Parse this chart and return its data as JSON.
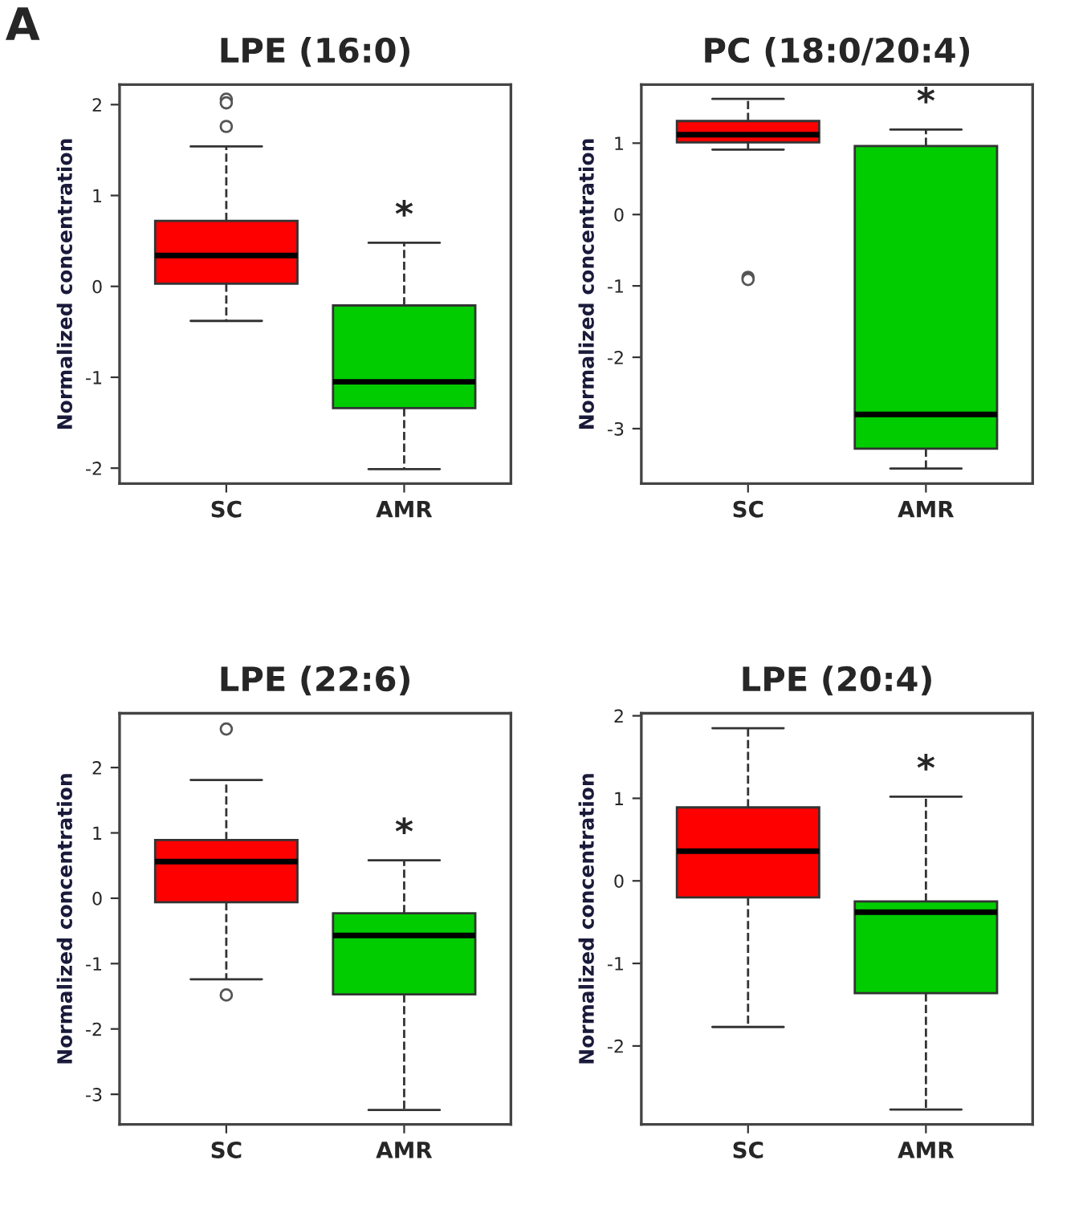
{
  "chart_data": [
    {
      "type": "box",
      "title": "LPE (16:0)",
      "ylabel": "Normalized concentration",
      "categories": [
        "SC",
        "AMR"
      ],
      "colors": [
        "#ff0000",
        "#00cc00"
      ],
      "boxes": [
        {
          "low": -0.38,
          "q1": 0.03,
          "median": 0.34,
          "q3": 0.72,
          "high": 1.54,
          "outliers": [
            2.06,
            2.02,
            1.76
          ]
        },
        {
          "low": -2.01,
          "q1": -1.34,
          "median": -1.05,
          "q3": -0.21,
          "high": 0.48
        }
      ],
      "ylim": [
        -2.17,
        2.22
      ],
      "yticks": [
        -2,
        -1,
        0,
        1,
        2
      ],
      "annotations": [
        "A",
        "*"
      ]
    },
    {
      "type": "box",
      "title": "PC (18:0/20:4)",
      "ylabel": "Normalized concentration",
      "categories": [
        "SC",
        "AMR"
      ],
      "colors": [
        "#ff0000",
        "#00cc00"
      ],
      "boxes": [
        {
          "low": 0.91,
          "q1": 1.01,
          "median": 1.12,
          "q3": 1.31,
          "high": 1.62,
          "outliers": [
            -0.88,
            -0.91
          ]
        },
        {
          "low": -3.56,
          "q1": -3.28,
          "median": -2.8,
          "q3": 0.96,
          "high": 1.19
        }
      ],
      "ylim": [
        -3.77,
        1.82
      ],
      "yticks": [
        -3,
        -2,
        -1,
        0,
        1
      ],
      "annotations": [
        "*"
      ]
    },
    {
      "type": "box",
      "title": "LPE (22:6)",
      "ylabel": "Normalized concentration",
      "categories": [
        "SC",
        "AMR"
      ],
      "colors": [
        "#ff0000",
        "#00cc00"
      ],
      "boxes": [
        {
          "low": -1.24,
          "q1": -0.06,
          "median": 0.56,
          "q3": 0.89,
          "high": 1.81,
          "outliers": [
            2.59,
            -1.48
          ]
        },
        {
          "low": -3.24,
          "q1": -1.47,
          "median": -0.57,
          "q3": -0.23,
          "high": 0.58
        }
      ],
      "ylim": [
        -3.46,
        2.83
      ],
      "yticks": [
        -3,
        -2,
        -1,
        0,
        1,
        2
      ],
      "annotations": [
        "*"
      ]
    },
    {
      "type": "box",
      "title": "LPE (20:4)",
      "ylabel": "Normalized concentration",
      "categories": [
        "SC",
        "AMR"
      ],
      "colors": [
        "#ff0000",
        "#00cc00"
      ],
      "boxes": [
        {
          "low": -1.77,
          "q1": -0.2,
          "median": 0.36,
          "q3": 0.89,
          "high": 1.85
        },
        {
          "low": -2.77,
          "q1": -1.36,
          "median": -0.38,
          "q3": -0.25,
          "high": 1.02
        }
      ],
      "ylim": [
        -2.95,
        2.03
      ],
      "yticks": [
        -2,
        -1,
        0,
        1,
        2
      ],
      "annotations": [
        "*"
      ]
    }
  ]
}
